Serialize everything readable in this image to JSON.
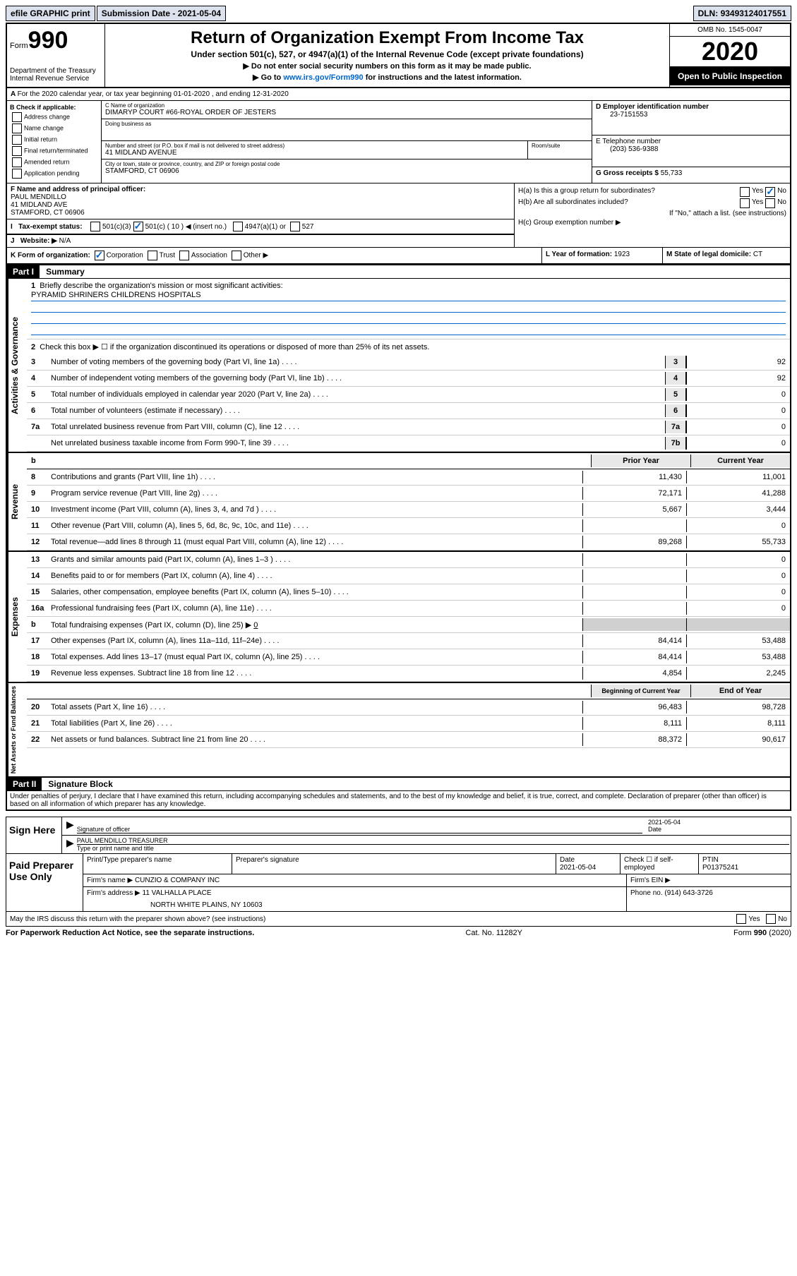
{
  "topbar": {
    "efile": "efile GRAPHIC print",
    "sub_label": "Submission Date - ",
    "sub_date": "2021-05-04",
    "dln_label": "DLN: ",
    "dln": "93493124017551"
  },
  "header": {
    "form_word": "Form",
    "form_num": "990",
    "dept1": "Department of the Treasury",
    "dept2": "Internal Revenue Service",
    "title": "Return of Organization Exempt From Income Tax",
    "subtitle": "Under section 501(c), 527, or 4947(a)(1) of the Internal Revenue Code (except private foundations)",
    "inst1": "▶ Do not enter social security numbers on this form as it may be made public.",
    "inst2_a": "▶ Go to ",
    "inst2_link": "www.irs.gov/Form990",
    "inst2_b": " for instructions and the latest information.",
    "omb": "OMB No. 1545-0047",
    "year": "2020",
    "open": "Open to Public Inspection"
  },
  "a": {
    "text": "For the 2020 calendar year, or tax year beginning 01-01-2020   , and ending 12-31-2020"
  },
  "b": {
    "label": "B Check if applicable:",
    "opts": [
      "Address change",
      "Name change",
      "Initial return",
      "Final return/terminated",
      "Amended return",
      "Application pending"
    ]
  },
  "c": {
    "name_label": "C Name of organization",
    "name": "DIMARYP COURT #66-ROYAL ORDER OF JESTERS",
    "dba_label": "Doing business as",
    "addr_label": "Number and street (or P.O. box if mail is not delivered to street address)",
    "room_label": "Room/suite",
    "addr": "41 MIDLAND AVENUE",
    "city_label": "City or town, state or province, country, and ZIP or foreign postal code",
    "city": "STAMFORD, CT  06906"
  },
  "d": {
    "label": "D Employer identification number",
    "value": "23-7151553"
  },
  "e": {
    "label": "E Telephone number",
    "value": "(203) 536-9388"
  },
  "g": {
    "label": "G Gross receipts $ ",
    "value": "55,733"
  },
  "f": {
    "label": "F Name and address of principal officer:",
    "name": "PAUL MENDILLO",
    "addr1": "41 MIDLAND AVE",
    "addr2": "STAMFORD, CT  06906"
  },
  "h": {
    "a": "H(a)  Is this a group return for subordinates?",
    "b": "H(b)  Are all subordinates included?",
    "c": "H(c)  Group exemption number ▶",
    "yes": "Yes",
    "no": "No",
    "note": "If \"No,\" attach a list. (see instructions)"
  },
  "i": {
    "label": "Tax-exempt status:",
    "o1": "501(c)(3)",
    "o2": "501(c) ( 10 ) ◀ (insert no.)",
    "o3": "4947(a)(1) or",
    "o4": "527"
  },
  "j": {
    "label": "Website: ▶",
    "value": "  N/A"
  },
  "k": {
    "label": "K Form of organization:",
    "corp": "Corporation",
    "trust": "Trust",
    "assoc": "Association",
    "other": "Other ▶"
  },
  "l": {
    "label": "L Year of formation: ",
    "value": "1923"
  },
  "m": {
    "label": "M State of legal domicile: ",
    "value": "CT"
  },
  "part1": {
    "hdr": "Part I",
    "title": "Summary",
    "l1": "Briefly describe the organization's mission or most significant activities:",
    "l1v": "PYRAMID SHRINERS CHILDRENS HOSPITALS",
    "l2": "Check this box ▶ ☐  if the organization discontinued its operations or disposed of more than 25% of its net assets.",
    "rows_gov": [
      {
        "n": "3",
        "d": "Number of voting members of the governing body (Part VI, line 1a)",
        "b": "3",
        "v": "92"
      },
      {
        "n": "4",
        "d": "Number of independent voting members of the governing body (Part VI, line 1b)",
        "b": "4",
        "v": "92"
      },
      {
        "n": "5",
        "d": "Total number of individuals employed in calendar year 2020 (Part V, line 2a)",
        "b": "5",
        "v": "0"
      },
      {
        "n": "6",
        "d": "Total number of volunteers (estimate if necessary)",
        "b": "6",
        "v": "0"
      },
      {
        "n": "7a",
        "d": "Total unrelated business revenue from Part VIII, column (C), line 12",
        "b": "7a",
        "v": "0"
      },
      {
        "n": "",
        "d": "Net unrelated business taxable income from Form 990-T, line 39",
        "b": "7b",
        "v": "0"
      }
    ],
    "col_prior": "Prior Year",
    "col_curr": "Current Year",
    "rev": [
      {
        "n": "8",
        "d": "Contributions and grants (Part VIII, line 1h)",
        "p": "11,430",
        "c": "11,001"
      },
      {
        "n": "9",
        "d": "Program service revenue (Part VIII, line 2g)",
        "p": "72,171",
        "c": "41,288"
      },
      {
        "n": "10",
        "d": "Investment income (Part VIII, column (A), lines 3, 4, and 7d )",
        "p": "5,667",
        "c": "3,444"
      },
      {
        "n": "11",
        "d": "Other revenue (Part VIII, column (A), lines 5, 6d, 8c, 9c, 10c, and 11e)",
        "p": "",
        "c": "0"
      },
      {
        "n": "12",
        "d": "Total revenue—add lines 8 through 11 (must equal Part VIII, column (A), line 12)",
        "p": "89,268",
        "c": "55,733"
      }
    ],
    "exp": [
      {
        "n": "13",
        "d": "Grants and similar amounts paid (Part IX, column (A), lines 1–3 )",
        "p": "",
        "c": "0"
      },
      {
        "n": "14",
        "d": "Benefits paid to or for members (Part IX, column (A), line 4)",
        "p": "",
        "c": "0"
      },
      {
        "n": "15",
        "d": "Salaries, other compensation, employee benefits (Part IX, column (A), lines 5–10)",
        "p": "",
        "c": "0"
      },
      {
        "n": "16a",
        "d": "Professional fundraising fees (Part IX, column (A), line 11e)",
        "p": "",
        "c": "0"
      }
    ],
    "l16b": "Total fundraising expenses (Part IX, column (D), line 25) ▶",
    "l16bv": "0",
    "exp2": [
      {
        "n": "17",
        "d": "Other expenses (Part IX, column (A), lines 11a–11d, 11f–24e)",
        "p": "84,414",
        "c": "53,488"
      },
      {
        "n": "18",
        "d": "Total expenses. Add lines 13–17 (must equal Part IX, column (A), line 25)",
        "p": "84,414",
        "c": "53,488"
      },
      {
        "n": "19",
        "d": "Revenue less expenses. Subtract line 18 from line 12",
        "p": "4,854",
        "c": "2,245"
      }
    ],
    "col_beg": "Beginning of Current Year",
    "col_end": "End of Year",
    "net": [
      {
        "n": "20",
        "d": "Total assets (Part X, line 16)",
        "p": "96,483",
        "c": "98,728"
      },
      {
        "n": "21",
        "d": "Total liabilities (Part X, line 26)",
        "p": "8,111",
        "c": "8,111"
      },
      {
        "n": "22",
        "d": "Net assets or fund balances. Subtract line 21 from line 20",
        "p": "88,372",
        "c": "90,617"
      }
    ]
  },
  "vlabels": {
    "gov": "Activities & Governance",
    "rev": "Revenue",
    "exp": "Expenses",
    "net": "Net Assets or Fund Balances"
  },
  "part2": {
    "hdr": "Part II",
    "title": "Signature Block",
    "decl": "Under penalties of perjury, I declare that I have examined this return, including accompanying schedules and statements, and to the best of my knowledge and belief, it is true, correct, and complete. Declaration of preparer (other than officer) is based on all information of which preparer has any knowledge."
  },
  "sign": {
    "label": "Sign Here",
    "sig_of": "Signature of officer",
    "date": "2021-05-04",
    "date_label": "Date",
    "name": "PAUL MENDILLO  TREASURER",
    "name_label": "Type or print name and title"
  },
  "prep": {
    "label": "Paid Preparer Use Only",
    "col1": "Print/Type preparer's name",
    "col2": "Preparer's signature",
    "col3": "Date",
    "col3v": "2021-05-04",
    "col4": "Check ☐ if self-employed",
    "col5": "PTIN",
    "col5v": "P01375241",
    "firm_label": "Firm's name    ▶",
    "firm": "CUNZIO & COMPANY INC",
    "ein_label": "Firm's EIN ▶",
    "addr_label": "Firm's address ▶",
    "addr": "11 VALHALLA PLACE",
    "addr2": "NORTH WHITE PLAINS, NY  10603",
    "phone_label": "Phone no. ",
    "phone": "(914) 643-3726",
    "discuss": "May the IRS discuss this return with the preparer shown above? (see instructions)"
  },
  "footer": {
    "pra": "For Paperwork Reduction Act Notice, see the separate instructions.",
    "cat": "Cat. No. 11282Y",
    "form": "Form 990 (2020)"
  }
}
